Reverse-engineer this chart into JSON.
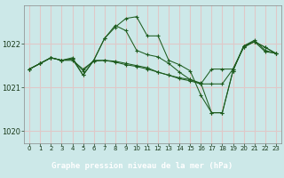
{
  "title": "Graphe pression niveau de la mer (hPa)",
  "plot_bg_color": "#cce8e8",
  "label_bg_color": "#3a6b3a",
  "label_text_color": "#ffffff",
  "grid_color": "#dfc8c8",
  "line_color": "#1e5c1e",
  "xlim": [
    -0.5,
    23.5
  ],
  "ylim": [
    1019.72,
    1022.88
  ],
  "yticks": [
    1020,
    1021,
    1022
  ],
  "xtick_labels": [
    "0",
    "1",
    "2",
    "3",
    "4",
    "5",
    "6",
    "7",
    "8",
    "9",
    "10",
    "11",
    "12",
    "13",
    "14",
    "15",
    "16",
    "17",
    "18",
    "19",
    "20",
    "21",
    "22",
    "23"
  ],
  "series": [
    [
      1021.42,
      1021.55,
      1021.68,
      1021.62,
      1021.68,
      1021.28,
      1021.62,
      1022.12,
      1022.38,
      1022.58,
      1022.62,
      1022.18,
      1022.18,
      1021.62,
      1021.52,
      1021.38,
      1020.82,
      1020.42,
      1020.42,
      1021.38,
      1021.95,
      1022.08,
      1021.85,
      1021.78
    ],
    [
      1021.42,
      1021.55,
      1021.68,
      1021.62,
      1021.62,
      1021.42,
      1021.6,
      1021.62,
      1021.58,
      1021.52,
      1021.48,
      1021.42,
      1021.35,
      1021.28,
      1021.22,
      1021.18,
      1021.08,
      1021.42,
      1021.42,
      1021.42,
      1021.92,
      1022.05,
      1021.92,
      1021.78
    ],
    [
      1021.42,
      1021.55,
      1021.68,
      1021.62,
      1021.65,
      1021.38,
      1021.62,
      1021.62,
      1021.6,
      1021.55,
      1021.5,
      1021.45,
      1021.35,
      1021.28,
      1021.2,
      1021.15,
      1021.08,
      1021.08,
      1021.08,
      1021.42,
      1021.92,
      1022.05,
      1021.92,
      1021.78
    ],
    [
      1021.42,
      1021.55,
      1021.68,
      1021.62,
      1021.65,
      1021.28,
      1021.62,
      1022.12,
      1022.42,
      1022.3,
      1021.85,
      1021.75,
      1021.7,
      1021.55,
      1021.35,
      1021.18,
      1021.1,
      1020.42,
      1020.42,
      1021.38,
      1021.95,
      1022.05,
      1021.82,
      1021.78
    ]
  ]
}
